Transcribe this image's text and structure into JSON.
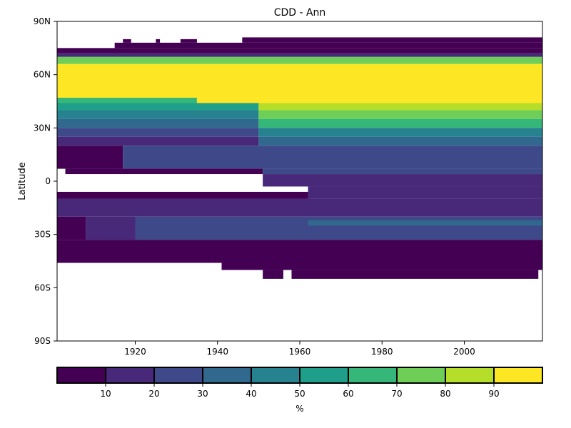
{
  "chart_data": {
    "type": "heatmap",
    "title": "CDD - Ann",
    "xlabel": "",
    "ylabel": "Latitude",
    "xlim": [
      1901,
      2019
    ],
    "ylim": [
      -90,
      90
    ],
    "x_ticks": [
      {
        "value": 1920,
        "label": "1920"
      },
      {
        "value": 1940,
        "label": "1940"
      },
      {
        "value": 1960,
        "label": "1960"
      },
      {
        "value": 1980,
        "label": "1980"
      },
      {
        "value": 2000,
        "label": "2000"
      }
    ],
    "y_ticks": [
      {
        "value": 90,
        "label": "90N"
      },
      {
        "value": 60,
        "label": "60N"
      },
      {
        "value": 30,
        "label": "30N"
      },
      {
        "value": 0,
        "label": "0"
      },
      {
        "value": -30,
        "label": "30S"
      },
      {
        "value": -60,
        "label": "60S"
      },
      {
        "value": -90,
        "label": "90S"
      }
    ],
    "colorbar": {
      "label": "%",
      "range": [
        0,
        100
      ],
      "bins": [
        {
          "from": 0,
          "to": 10,
          "color": "#440154"
        },
        {
          "from": 10,
          "to": 20,
          "color": "#482878"
        },
        {
          "from": 20,
          "to": 30,
          "color": "#3e4989"
        },
        {
          "from": 30,
          "to": 40,
          "color": "#31688e"
        },
        {
          "from": 40,
          "to": 50,
          "color": "#26828e"
        },
        {
          "from": 50,
          "to": 60,
          "color": "#1f9e89"
        },
        {
          "from": 60,
          "to": 70,
          "color": "#35b779"
        },
        {
          "from": 70,
          "to": 80,
          "color": "#6ece58"
        },
        {
          "from": 80,
          "to": 90,
          "color": "#b5de2b"
        },
        {
          "from": 90,
          "to": 100,
          "color": "#fde725"
        }
      ],
      "tick_labels": [
        "10",
        "20",
        "30",
        "40",
        "50",
        "60",
        "70",
        "80",
        "90"
      ]
    },
    "regions": [
      {
        "x": [
          1917,
          1919
        ],
        "lat": [
          78,
          80
        ],
        "value": 5
      },
      {
        "x": [
          1925,
          1926
        ],
        "lat": [
          78,
          80
        ],
        "value": 5
      },
      {
        "x": [
          1931,
          1935
        ],
        "lat": [
          78,
          80
        ],
        "value": 5
      },
      {
        "x": [
          1946,
          2019
        ],
        "lat": [
          78,
          81
        ],
        "value": 5
      },
      {
        "x": [
          1915,
          2019
        ],
        "lat": [
          75,
          78
        ],
        "value": 5
      },
      {
        "x": [
          1901,
          2019
        ],
        "lat": [
          72,
          75
        ],
        "value": 5
      },
      {
        "x": [
          1901,
          2019
        ],
        "lat": [
          70,
          72
        ],
        "value": 15
      },
      {
        "x": [
          1901,
          2019
        ],
        "lat": [
          66,
          70
        ],
        "value": 75
      },
      {
        "x": [
          1901,
          2019
        ],
        "lat": [
          47,
          66
        ],
        "value": 95
      },
      {
        "x": [
          1901,
          1935
        ],
        "lat": [
          44,
          47
        ],
        "value": 65
      },
      {
        "x": [
          1935,
          2019
        ],
        "lat": [
          44,
          47
        ],
        "value": 95
      },
      {
        "x": [
          1901,
          1950
        ],
        "lat": [
          40,
          44
        ],
        "value": 55
      },
      {
        "x": [
          1950,
          2019
        ],
        "lat": [
          40,
          44
        ],
        "value": 85
      },
      {
        "x": [
          1901,
          1950
        ],
        "lat": [
          35,
          40
        ],
        "value": 45
      },
      {
        "x": [
          1950,
          2019
        ],
        "lat": [
          35,
          40
        ],
        "value": 75
      },
      {
        "x": [
          1901,
          1950
        ],
        "lat": [
          30,
          35
        ],
        "value": 35
      },
      {
        "x": [
          1950,
          2019
        ],
        "lat": [
          30,
          35
        ],
        "value": 65
      },
      {
        "x": [
          1901,
          1950
        ],
        "lat": [
          25,
          30
        ],
        "value": 25
      },
      {
        "x": [
          1950,
          2019
        ],
        "lat": [
          25,
          30
        ],
        "value": 45
      },
      {
        "x": [
          1901,
          1950
        ],
        "lat": [
          20,
          25
        ],
        "value": 15
      },
      {
        "x": [
          1950,
          2019
        ],
        "lat": [
          20,
          25
        ],
        "value": 35
      },
      {
        "x": [
          1901,
          1917
        ],
        "lat": [
          7,
          20
        ],
        "value": 5
      },
      {
        "x": [
          1917,
          2019
        ],
        "lat": [
          7,
          20
        ],
        "value": 25
      },
      {
        "x": [
          1903,
          1951
        ],
        "lat": [
          4,
          7
        ],
        "value": 5
      },
      {
        "x": [
          1951,
          2019
        ],
        "lat": [
          4,
          7
        ],
        "value": 20
      },
      {
        "x": [
          1951,
          2019
        ],
        "lat": [
          0,
          4
        ],
        "value": 15
      },
      {
        "x": [
          1951,
          2019
        ],
        "lat": [
          -3,
          0
        ],
        "value": 10
      },
      {
        "x": [
          1901,
          1962
        ],
        "lat": [
          -10,
          -6
        ],
        "value": 5
      },
      {
        "x": [
          1962,
          2019
        ],
        "lat": [
          -10,
          -3
        ],
        "value": 15
      },
      {
        "x": [
          1901,
          2019
        ],
        "lat": [
          -20,
          -10
        ],
        "value": 15
      },
      {
        "x": [
          1901,
          1908
        ],
        "lat": [
          -33,
          -20
        ],
        "value": 5
      },
      {
        "x": [
          1908,
          1920
        ],
        "lat": [
          -33,
          -20
        ],
        "value": 15
      },
      {
        "x": [
          1920,
          2019
        ],
        "lat": [
          -33,
          -20
        ],
        "value": 25
      },
      {
        "x": [
          1962,
          2019
        ],
        "lat": [
          -25,
          -22
        ],
        "value": 35
      },
      {
        "x": [
          1901,
          2019
        ],
        "lat": [
          -46,
          -33
        ],
        "value": 5
      },
      {
        "x": [
          1941,
          2019
        ],
        "lat": [
          -50,
          -46
        ],
        "value": 5
      },
      {
        "x": [
          1951,
          1956
        ],
        "lat": [
          -55,
          -50
        ],
        "value": 5
      },
      {
        "x": [
          1958,
          2018
        ],
        "lat": [
          -55,
          -50
        ],
        "value": 5
      }
    ]
  }
}
